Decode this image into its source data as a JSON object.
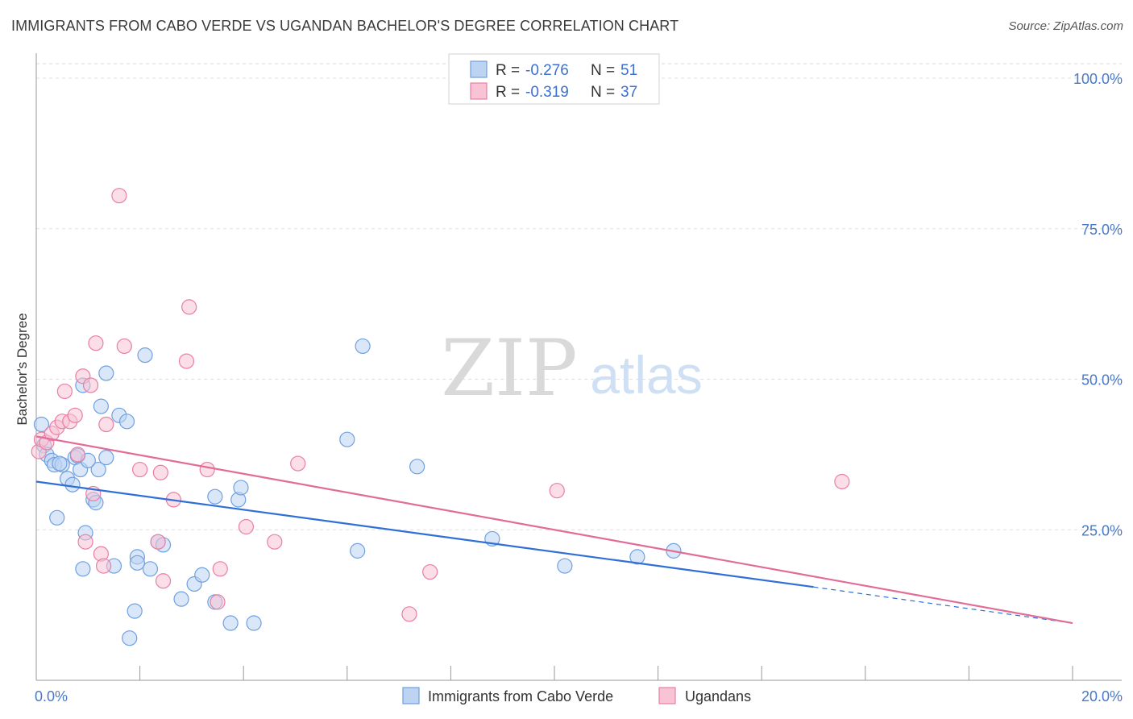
{
  "title": "IMMIGRANTS FROM CABO VERDE VS UGANDAN BACHELOR'S DEGREE CORRELATION CHART",
  "source": "Source: ZipAtlas.com",
  "watermark": {
    "zip": "ZIP",
    "atlas": "atlas"
  },
  "chart_data": {
    "type": "scatter",
    "title": "IMMIGRANTS FROM CABO VERDE VS UGANDAN BACHELOR'S DEGREE CORRELATION CHART",
    "xlabel": "",
    "ylabel": "Bachelor's Degree",
    "xlim": [
      0,
      20
    ],
    "ylim": [
      0,
      100
    ],
    "x_tick_labels": [
      "0.0%",
      "20.0%"
    ],
    "y_tick_labels": [
      "100.0%",
      "75.0%",
      "50.0%",
      "25.0%"
    ],
    "y_ticks": [
      100,
      75,
      50,
      25
    ],
    "grid": true,
    "legend_position": "top-center",
    "legend": [
      {
        "label_r": "R =",
        "r": "-0.276",
        "label_n": "N =",
        "n": "51",
        "color": "#6fa0e0",
        "fill": "#bcd3f2"
      },
      {
        "label_r": "R =",
        "r": "-0.319",
        "label_n": "N =",
        "n": "37",
        "color": "#e87fa4",
        "fill": "#f8c3d4"
      }
    ],
    "series": [
      {
        "name": "Immigrants from Cabo Verde",
        "color": "#6fa0e0",
        "fill": "#bcd3f2",
        "points": [
          [
            0.1,
            42.5
          ],
          [
            0.15,
            39
          ],
          [
            0.2,
            37.5
          ],
          [
            0.3,
            36.5
          ],
          [
            0.35,
            35.8
          ],
          [
            0.4,
            27
          ],
          [
            0.5,
            35.8
          ],
          [
            0.6,
            33.5
          ],
          [
            0.7,
            32.5
          ],
          [
            0.75,
            37
          ],
          [
            0.8,
            37.3
          ],
          [
            0.85,
            35
          ],
          [
            0.9,
            18.5
          ],
          [
            0.95,
            24.5
          ],
          [
            0.9,
            49
          ],
          [
            1.1,
            30
          ],
          [
            1.15,
            29.5
          ],
          [
            1.2,
            35
          ],
          [
            1.25,
            45.5
          ],
          [
            1.35,
            51
          ],
          [
            1.35,
            37
          ],
          [
            1.5,
            19
          ],
          [
            1.6,
            44
          ],
          [
            1.75,
            43
          ],
          [
            1.8,
            7
          ],
          [
            1.9,
            11.5
          ],
          [
            1.95,
            20.5
          ],
          [
            1.95,
            19.5
          ],
          [
            2.1,
            54
          ],
          [
            2.2,
            18.5
          ],
          [
            2.35,
            23
          ],
          [
            2.45,
            22.5
          ],
          [
            2.8,
            13.5
          ],
          [
            3.05,
            16
          ],
          [
            3.2,
            17.5
          ],
          [
            3.45,
            13
          ],
          [
            3.45,
            30.5
          ],
          [
            3.75,
            9.5
          ],
          [
            3.9,
            30
          ],
          [
            3.95,
            32
          ],
          [
            4.2,
            9.5
          ],
          [
            6.0,
            40
          ],
          [
            6.2,
            21.5
          ],
          [
            6.3,
            55.5
          ],
          [
            7.35,
            35.5
          ],
          [
            8.8,
            23.5
          ],
          [
            10.2,
            19
          ],
          [
            11.6,
            20.5
          ],
          [
            12.3,
            21.5
          ],
          [
            0.45,
            36
          ],
          [
            1.0,
            36.5
          ]
        ],
        "trend": {
          "x0": 0,
          "y0": 33,
          "x1": 15,
          "y1": 15.5,
          "x_dash_end": 20,
          "y_dash_end": 9.5
        }
      },
      {
        "name": "Ugandans",
        "color": "#e87fa4",
        "fill": "#f8c3d4",
        "points": [
          [
            0.05,
            38
          ],
          [
            0.1,
            40
          ],
          [
            0.2,
            39.5
          ],
          [
            0.3,
            41
          ],
          [
            0.4,
            42
          ],
          [
            0.5,
            43
          ],
          [
            0.55,
            48
          ],
          [
            0.65,
            43
          ],
          [
            0.75,
            44
          ],
          [
            0.8,
            37.5
          ],
          [
            0.9,
            50.5
          ],
          [
            0.95,
            23
          ],
          [
            1.05,
            49
          ],
          [
            1.1,
            31
          ],
          [
            1.15,
            56
          ],
          [
            1.25,
            21
          ],
          [
            1.3,
            19
          ],
          [
            1.35,
            42.5
          ],
          [
            1.6,
            80.5
          ],
          [
            1.7,
            55.5
          ],
          [
            2.0,
            35
          ],
          [
            2.35,
            23
          ],
          [
            2.4,
            34.5
          ],
          [
            2.45,
            16.5
          ],
          [
            2.65,
            30
          ],
          [
            2.9,
            53
          ],
          [
            2.95,
            62
          ],
          [
            3.3,
            35
          ],
          [
            3.5,
            13
          ],
          [
            3.55,
            18.5
          ],
          [
            4.05,
            25.5
          ],
          [
            4.6,
            23
          ],
          [
            5.05,
            36
          ],
          [
            7.2,
            11
          ],
          [
            7.6,
            18
          ],
          [
            10.05,
            31.5
          ],
          [
            15.55,
            33
          ]
        ],
        "trend": {
          "x0": 0,
          "y0": 40.5,
          "x1": 20,
          "y1": 9.5
        }
      }
    ]
  },
  "bottom_legend": [
    {
      "label": "Immigrants from Cabo Verde",
      "color": "#6fa0e0",
      "fill": "#bcd3f2"
    },
    {
      "label": "Ugandans",
      "color": "#e87fa4",
      "fill": "#f8c3d4"
    }
  ]
}
